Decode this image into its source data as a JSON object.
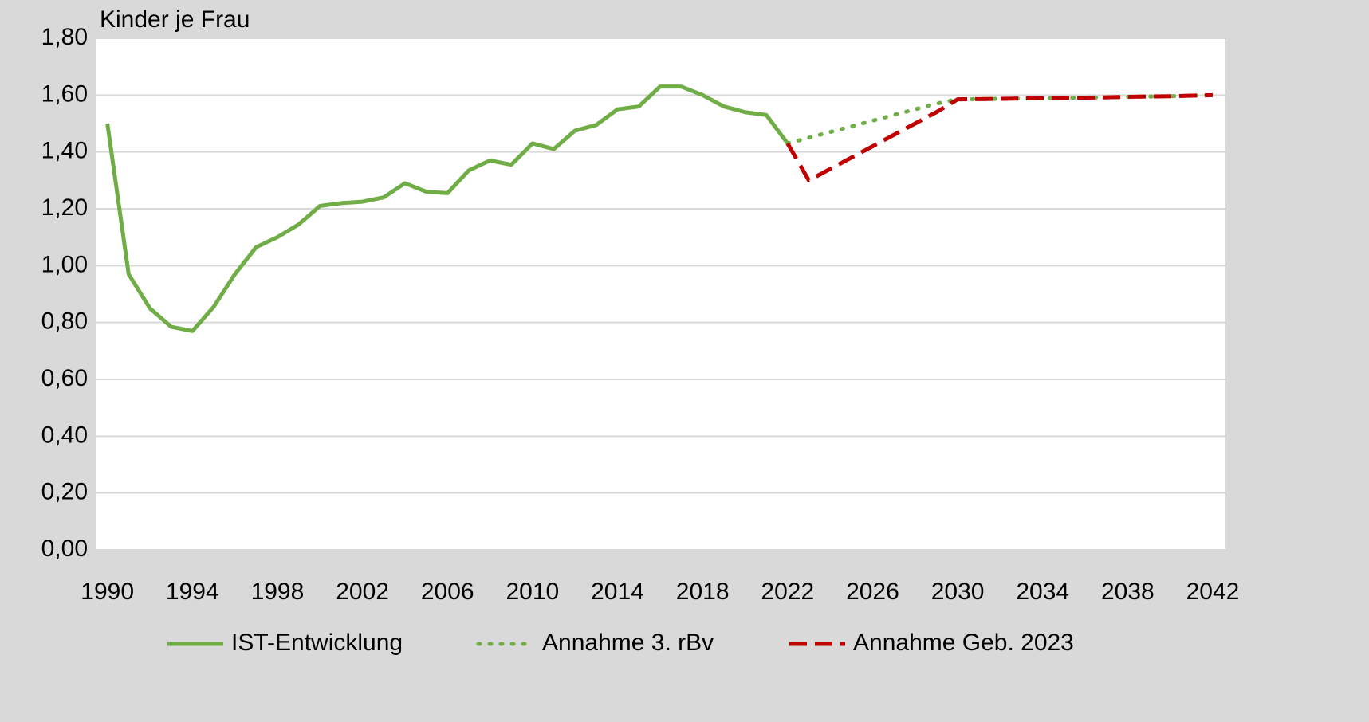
{
  "chart_data": {
    "type": "line",
    "title": "Kinder je Frau",
    "x": [
      1990,
      1991,
      1992,
      1993,
      1994,
      1995,
      1996,
      1997,
      1998,
      1999,
      2000,
      2001,
      2002,
      2003,
      2004,
      2005,
      2006,
      2007,
      2008,
      2009,
      2010,
      2011,
      2012,
      2013,
      2014,
      2015,
      2016,
      2017,
      2018,
      2019,
      2020,
      2021,
      2022,
      2023,
      2024,
      2025,
      2026,
      2027,
      2028,
      2029,
      2030,
      2031,
      2032,
      2033,
      2034,
      2035,
      2036,
      2037,
      2038,
      2039,
      2040,
      2041,
      2042
    ],
    "series": [
      {
        "name": "IST-Entwicklung",
        "color": "#70ad47",
        "dash": "solid",
        "values": [
          1.5,
          0.97,
          0.85,
          0.785,
          0.77,
          0.855,
          0.97,
          1.065,
          1.1,
          1.145,
          1.21,
          1.22,
          1.225,
          1.24,
          1.29,
          1.26,
          1.255,
          1.335,
          1.37,
          1.355,
          1.43,
          1.41,
          1.475,
          1.495,
          1.55,
          1.56,
          1.63,
          1.63,
          1.6,
          1.56,
          1.54,
          1.53,
          1.43,
          null,
          null,
          null,
          null,
          null,
          null,
          null,
          null,
          null,
          null,
          null,
          null,
          null,
          null,
          null,
          null,
          null,
          null,
          null,
          null
        ]
      },
      {
        "name": "Annahme 3. rBv",
        "color": "#70ad47",
        "dash": "dotted",
        "values": [
          null,
          null,
          null,
          null,
          null,
          null,
          null,
          null,
          null,
          null,
          null,
          null,
          null,
          null,
          null,
          null,
          null,
          null,
          null,
          null,
          null,
          null,
          null,
          null,
          null,
          null,
          null,
          null,
          null,
          null,
          null,
          null,
          1.43,
          1.45,
          1.47,
          1.49,
          1.51,
          1.53,
          1.55,
          1.57,
          1.585,
          1.586,
          1.587,
          1.588,
          1.589,
          1.59,
          1.591,
          1.592,
          1.594,
          1.595,
          1.596,
          1.598,
          1.6
        ]
      },
      {
        "name": "Annahme Geb. 2023",
        "color": "#c00000",
        "dash": "dashed",
        "values": [
          null,
          null,
          null,
          null,
          null,
          null,
          null,
          null,
          null,
          null,
          null,
          null,
          null,
          null,
          null,
          null,
          null,
          null,
          null,
          null,
          null,
          null,
          null,
          null,
          null,
          null,
          null,
          null,
          null,
          null,
          null,
          null,
          1.43,
          1.3,
          1.34,
          1.38,
          1.42,
          1.46,
          1.5,
          1.54,
          1.585,
          1.586,
          1.587,
          1.588,
          1.589,
          1.59,
          1.591,
          1.592,
          1.594,
          1.595,
          1.596,
          1.598,
          1.6
        ]
      }
    ],
    "xlim": [
      1989.45,
      2042.6
    ],
    "xticks": [
      1990,
      1994,
      1998,
      2002,
      2006,
      2010,
      2014,
      2018,
      2022,
      2026,
      2030,
      2034,
      2038,
      2042
    ],
    "ylim": [
      0,
      1.8
    ],
    "yticks": [
      {
        "value": 0,
        "label": "0,00"
      },
      {
        "value": 0.2,
        "label": "0,20"
      },
      {
        "value": 0.4,
        "label": "0,40"
      },
      {
        "value": 0.6,
        "label": "0,60"
      },
      {
        "value": 0.8,
        "label": "0,80"
      },
      {
        "value": 1.0,
        "label": "1,00"
      },
      {
        "value": 1.2,
        "label": "1,20"
      },
      {
        "value": 1.4,
        "label": "1,40"
      },
      {
        "value": 1.6,
        "label": "1,60"
      },
      {
        "value": 1.8,
        "label": "1,80"
      }
    ],
    "grid": true,
    "legend": "bottom"
  }
}
